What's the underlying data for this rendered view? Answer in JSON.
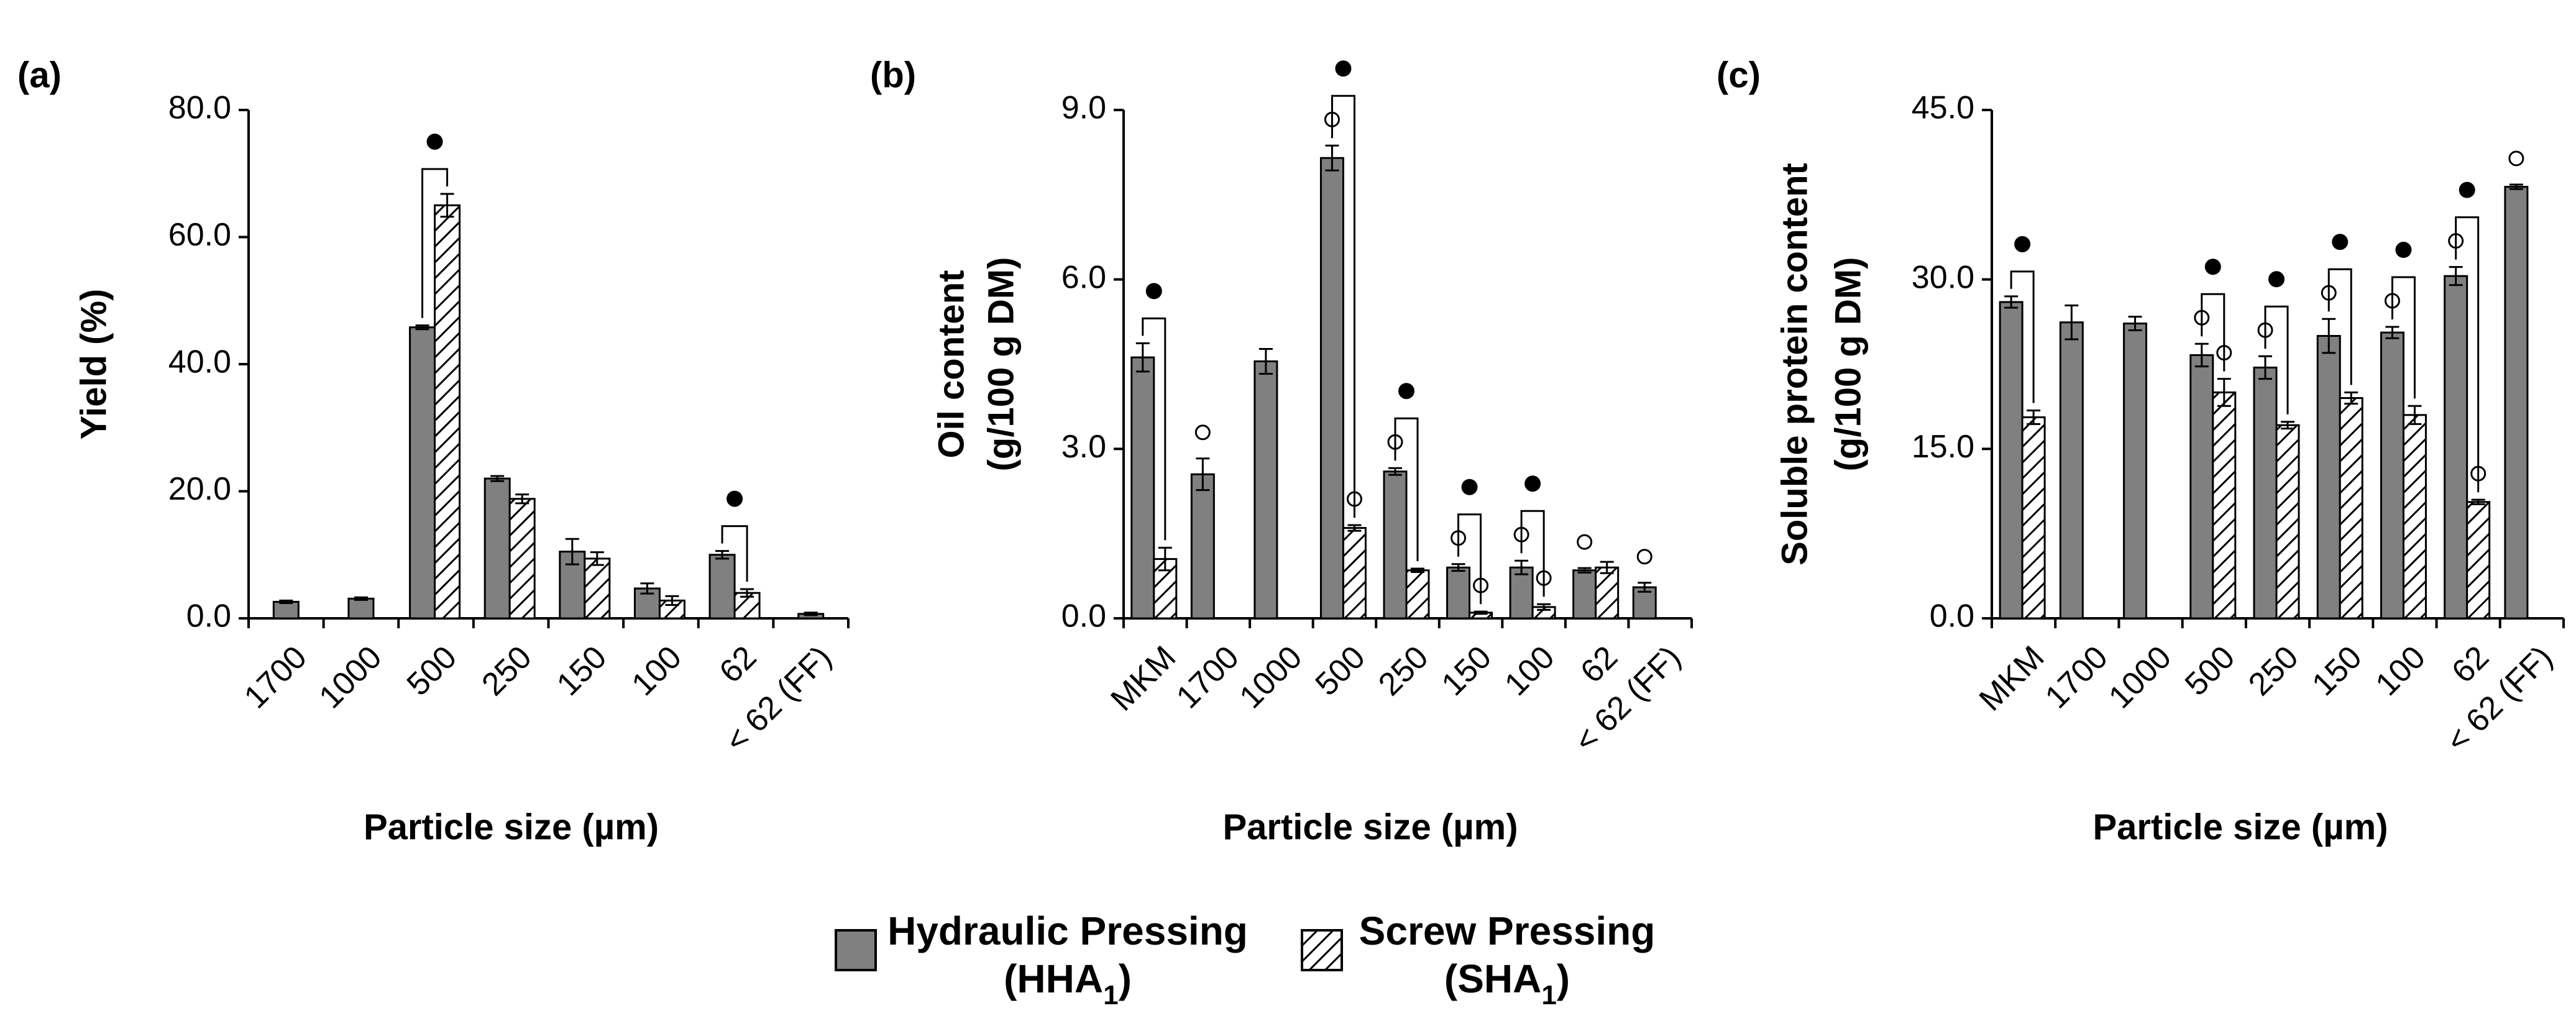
{
  "colors": {
    "hydraulic_fill": "#808080",
    "bar_stroke": "#000000",
    "hatch_line": "#000000"
  },
  "legend": {
    "hydraulic_line1": "Hydraulic Pressing",
    "hydraulic_line2": "(HHA",
    "hydraulic_sub": "1",
    "hydraulic_close": ")",
    "screw_line1": "Screw Pressing",
    "screw_line2": "(SHA",
    "screw_sub": "1",
    "screw_close": ")"
  },
  "chart_data": [
    {
      "type": "bar",
      "panel_label": "(a)",
      "xlabel": "Particle size (µm)",
      "ylabel": [
        "Yield  (%)"
      ],
      "ylim": [
        0,
        80
      ],
      "yticks": [
        "0.0",
        "20.0",
        "40.0",
        "60.0",
        "80.0"
      ],
      "categories": [
        "1700",
        "1000",
        "500",
        "250",
        "150",
        "100",
        "62",
        "< 62 (FF)"
      ],
      "series": [
        {
          "name": "Hydraulic Pressing (HHA1)",
          "values": [
            2.6,
            3.1,
            45.8,
            22.0,
            10.5,
            4.7,
            10.0,
            0.7
          ],
          "errors": [
            0.2,
            0.2,
            0.3,
            0.4,
            2.0,
            0.8,
            0.6,
            0.2
          ]
        },
        {
          "name": "Screw Pressing (SHA1)",
          "values": [
            null,
            null,
            65.0,
            18.8,
            9.4,
            2.8,
            4.0,
            null
          ],
          "errors": [
            null,
            null,
            1.8,
            0.7,
            1.0,
            0.7,
            0.6,
            null
          ]
        }
      ],
      "open_markers": [],
      "sig_brackets": [
        2,
        6
      ]
    },
    {
      "type": "bar",
      "panel_label": "(b)",
      "xlabel": "Particle size (µm)",
      "ylabel": [
        "Oil content",
        "(g/100 g DM)"
      ],
      "ylim": [
        0,
        9
      ],
      "yticks": [
        "0.0",
        "3.0",
        "6.0",
        "9.0"
      ],
      "categories": [
        "MKM",
        "1700",
        "1000",
        "500",
        "250",
        "150",
        "100",
        "62",
        "< 62 (FF)"
      ],
      "series": [
        {
          "name": "Hydraulic Pressing (HHA1)",
          "values": [
            4.62,
            2.55,
            4.55,
            8.15,
            2.6,
            0.9,
            0.9,
            0.85,
            0.55
          ],
          "errors": [
            0.25,
            0.28,
            0.22,
            0.22,
            0.06,
            0.06,
            0.12,
            0.04,
            0.08
          ]
        },
        {
          "name": "Screw Pressing (SHA1)",
          "values": [
            1.05,
            null,
            null,
            1.6,
            0.85,
            0.1,
            0.2,
            0.9,
            null
          ],
          "errors": [
            0.2,
            null,
            null,
            0.05,
            0.03,
            0.02,
            0.05,
            0.1,
            null
          ]
        }
      ],
      "open_markers": [
        [
          1,
          0
        ],
        [
          3,
          0
        ],
        [
          3,
          1
        ],
        [
          4,
          0
        ],
        [
          5,
          0
        ],
        [
          5,
          1
        ],
        [
          6,
          0
        ],
        [
          6,
          1
        ],
        [
          7,
          0
        ],
        [
          8,
          0
        ]
      ],
      "sig_brackets": [
        0,
        3,
        4,
        5,
        6
      ]
    },
    {
      "type": "bar",
      "panel_label": "(c)",
      "xlabel": "Particle size (µm)",
      "ylabel": [
        "Soluble  protein content",
        "(g/100 g DM)"
      ],
      "ylim": [
        0,
        45
      ],
      "yticks": [
        "0.0",
        "15.0",
        "30.0",
        "45.0"
      ],
      "categories": [
        "MKM",
        "1700",
        "1000",
        "500",
        "250",
        "150",
        "100",
        "62",
        "< 62 (FF)"
      ],
      "series": [
        {
          "name": "Hydraulic Pressing (HHA1)",
          "values": [
            28.0,
            26.2,
            26.1,
            23.3,
            22.2,
            25.0,
            25.3,
            30.3,
            38.2
          ],
          "errors": [
            0.5,
            1.5,
            0.6,
            1.0,
            1.0,
            1.5,
            0.5,
            0.8,
            0.2
          ]
        },
        {
          "name": "Screw Pressing (SHA1)",
          "values": [
            17.8,
            null,
            null,
            20.0,
            17.1,
            19.5,
            18.0,
            10.3,
            null
          ],
          "errors": [
            0.6,
            null,
            null,
            1.2,
            0.3,
            0.5,
            0.8,
            0.2,
            null
          ]
        }
      ],
      "open_markers": [
        [
          3,
          0
        ],
        [
          3,
          1
        ],
        [
          4,
          0
        ],
        [
          5,
          0
        ],
        [
          6,
          0
        ],
        [
          7,
          0
        ],
        [
          7,
          1
        ],
        [
          8,
          0
        ]
      ],
      "sig_brackets": [
        0,
        3,
        4,
        5,
        6,
        7
      ]
    }
  ]
}
